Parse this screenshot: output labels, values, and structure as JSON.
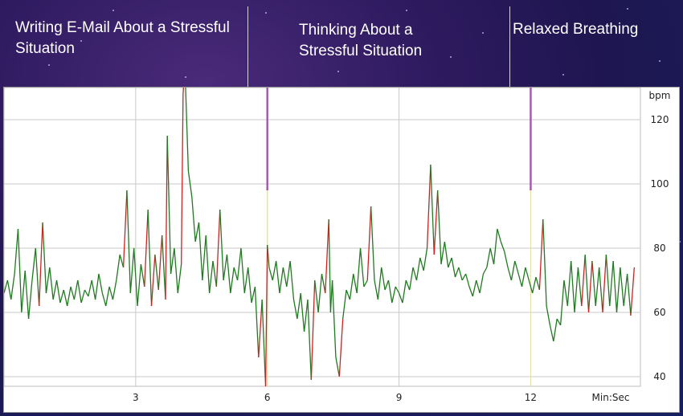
{
  "slide": {
    "phases": [
      {
        "label_line1": "Writing E-Mail About a Stressful",
        "label_line2": "Situation"
      },
      {
        "label_line1": "Thinking About a",
        "label_line2": "Stressful Situation"
      },
      {
        "label_line1": "Relaxed Breathing",
        "label_line2": ""
      }
    ],
    "marker_color": "#b44fc4"
  },
  "chart_data": {
    "type": "line",
    "ylabel": "bpm",
    "xlabel": "Min:Sec",
    "ylim": [
      37,
      130
    ],
    "xlim": [
      0,
      14.5
    ],
    "yticks": [
      "40",
      "60",
      "80",
      "100",
      "120"
    ],
    "xticks": [
      "3",
      "6",
      "9",
      "12"
    ],
    "phase_boundaries": [
      6,
      12
    ],
    "grid": true,
    "line_color": "#1f7a1f",
    "highlight_color": "#cc2222",
    "series": [
      {
        "values": [
          [
            0.0,
            66
          ],
          [
            0.08,
            70
          ],
          [
            0.16,
            64
          ],
          [
            0.24,
            72
          ],
          [
            0.32,
            86
          ],
          [
            0.4,
            60
          ],
          [
            0.48,
            73
          ],
          [
            0.56,
            58
          ],
          [
            0.64,
            70
          ],
          [
            0.72,
            80
          ],
          [
            0.8,
            62
          ],
          [
            0.88,
            88
          ],
          [
            0.96,
            66
          ],
          [
            1.04,
            74
          ],
          [
            1.12,
            64
          ],
          [
            1.2,
            70
          ],
          [
            1.28,
            63
          ],
          [
            1.36,
            67
          ],
          [
            1.44,
            62
          ],
          [
            1.52,
            68
          ],
          [
            1.6,
            64
          ],
          [
            1.68,
            70
          ],
          [
            1.76,
            63
          ],
          [
            1.84,
            67
          ],
          [
            1.92,
            65
          ],
          [
            2.0,
            70
          ],
          [
            2.08,
            64
          ],
          [
            2.16,
            72
          ],
          [
            2.24,
            66
          ],
          [
            2.32,
            62
          ],
          [
            2.4,
            68
          ],
          [
            2.48,
            64
          ],
          [
            2.56,
            70
          ],
          [
            2.64,
            78
          ],
          [
            2.72,
            74
          ],
          [
            2.8,
            98
          ],
          [
            2.88,
            66
          ],
          [
            2.96,
            80
          ],
          [
            3.04,
            62
          ],
          [
            3.12,
            75
          ],
          [
            3.2,
            68
          ],
          [
            3.28,
            92
          ],
          [
            3.36,
            62
          ],
          [
            3.44,
            78
          ],
          [
            3.52,
            67
          ],
          [
            3.6,
            84
          ],
          [
            3.68,
            64
          ],
          [
            3.72,
            115
          ],
          [
            3.8,
            72
          ],
          [
            3.88,
            80
          ],
          [
            3.96,
            66
          ],
          [
            4.04,
            75
          ],
          [
            4.08,
            128
          ],
          [
            4.12,
            137
          ],
          [
            4.2,
            104
          ],
          [
            4.28,
            96
          ],
          [
            4.36,
            82
          ],
          [
            4.44,
            88
          ],
          [
            4.52,
            70
          ],
          [
            4.6,
            84
          ],
          [
            4.68,
            66
          ],
          [
            4.76,
            76
          ],
          [
            4.84,
            68
          ],
          [
            4.92,
            92
          ],
          [
            5.0,
            70
          ],
          [
            5.08,
            78
          ],
          [
            5.16,
            66
          ],
          [
            5.24,
            74
          ],
          [
            5.32,
            70
          ],
          [
            5.4,
            80
          ],
          [
            5.48,
            66
          ],
          [
            5.56,
            74
          ],
          [
            5.64,
            63
          ],
          [
            5.72,
            68
          ],
          [
            5.8,
            46
          ],
          [
            5.88,
            64
          ],
          [
            5.96,
            37
          ],
          [
            6.0,
            81
          ],
          [
            6.04,
            74
          ],
          [
            6.12,
            70
          ],
          [
            6.2,
            76
          ],
          [
            6.28,
            66
          ],
          [
            6.36,
            74
          ],
          [
            6.44,
            68
          ],
          [
            6.52,
            76
          ],
          [
            6.6,
            64
          ],
          [
            6.68,
            58
          ],
          [
            6.76,
            66
          ],
          [
            6.84,
            54
          ],
          [
            6.92,
            64
          ],
          [
            7.0,
            39
          ],
          [
            7.08,
            70
          ],
          [
            7.16,
            60
          ],
          [
            7.24,
            72
          ],
          [
            7.32,
            66
          ],
          [
            7.4,
            89
          ],
          [
            7.44,
            60
          ],
          [
            7.48,
            70
          ],
          [
            7.56,
            46
          ],
          [
            7.64,
            40
          ],
          [
            7.72,
            58
          ],
          [
            7.8,
            67
          ],
          [
            7.88,
            64
          ],
          [
            7.96,
            72
          ],
          [
            8.04,
            66
          ],
          [
            8.12,
            80
          ],
          [
            8.2,
            68
          ],
          [
            8.28,
            70
          ],
          [
            8.36,
            93
          ],
          [
            8.44,
            70
          ],
          [
            8.52,
            64
          ],
          [
            8.6,
            74
          ],
          [
            8.68,
            67
          ],
          [
            8.76,
            70
          ],
          [
            8.84,
            63
          ],
          [
            8.92,
            68
          ],
          [
            9.0,
            66
          ],
          [
            9.08,
            63
          ],
          [
            9.16,
            70
          ],
          [
            9.24,
            67
          ],
          [
            9.32,
            74
          ],
          [
            9.4,
            70
          ],
          [
            9.48,
            77
          ],
          [
            9.56,
            73
          ],
          [
            9.64,
            80
          ],
          [
            9.72,
            106
          ],
          [
            9.8,
            78
          ],
          [
            9.88,
            98
          ],
          [
            9.96,
            75
          ],
          [
            10.04,
            82
          ],
          [
            10.12,
            74
          ],
          [
            10.2,
            77
          ],
          [
            10.28,
            71
          ],
          [
            10.36,
            74
          ],
          [
            10.44,
            70
          ],
          [
            10.52,
            72
          ],
          [
            10.6,
            68
          ],
          [
            10.68,
            65
          ],
          [
            10.76,
            70
          ],
          [
            10.84,
            66
          ],
          [
            10.92,
            72
          ],
          [
            11.0,
            74
          ],
          [
            11.08,
            80
          ],
          [
            11.16,
            75
          ],
          [
            11.24,
            86
          ],
          [
            11.32,
            82
          ],
          [
            11.4,
            79
          ],
          [
            11.48,
            74
          ],
          [
            11.56,
            70
          ],
          [
            11.64,
            76
          ],
          [
            11.72,
            72
          ],
          [
            11.8,
            68
          ],
          [
            11.88,
            74
          ],
          [
            11.96,
            70
          ],
          [
            12.04,
            66
          ],
          [
            12.12,
            71
          ],
          [
            12.2,
            67
          ],
          [
            12.28,
            89
          ],
          [
            12.36,
            62
          ],
          [
            12.44,
            56
          ],
          [
            12.52,
            51
          ],
          [
            12.6,
            58
          ],
          [
            12.68,
            56
          ],
          [
            12.76,
            70
          ],
          [
            12.84,
            62
          ],
          [
            12.92,
            76
          ],
          [
            13.0,
            60
          ],
          [
            13.08,
            74
          ],
          [
            13.16,
            62
          ],
          [
            13.24,
            78
          ],
          [
            13.32,
            60
          ],
          [
            13.4,
            76
          ],
          [
            13.48,
            62
          ],
          [
            13.56,
            74
          ],
          [
            13.64,
            60
          ],
          [
            13.72,
            78
          ],
          [
            13.8,
            62
          ],
          [
            13.88,
            76
          ],
          [
            13.96,
            60
          ],
          [
            14.04,
            74
          ],
          [
            14.12,
            62
          ],
          [
            14.2,
            72
          ],
          [
            14.28,
            59
          ],
          [
            14.36,
            74
          ]
        ]
      }
    ]
  }
}
